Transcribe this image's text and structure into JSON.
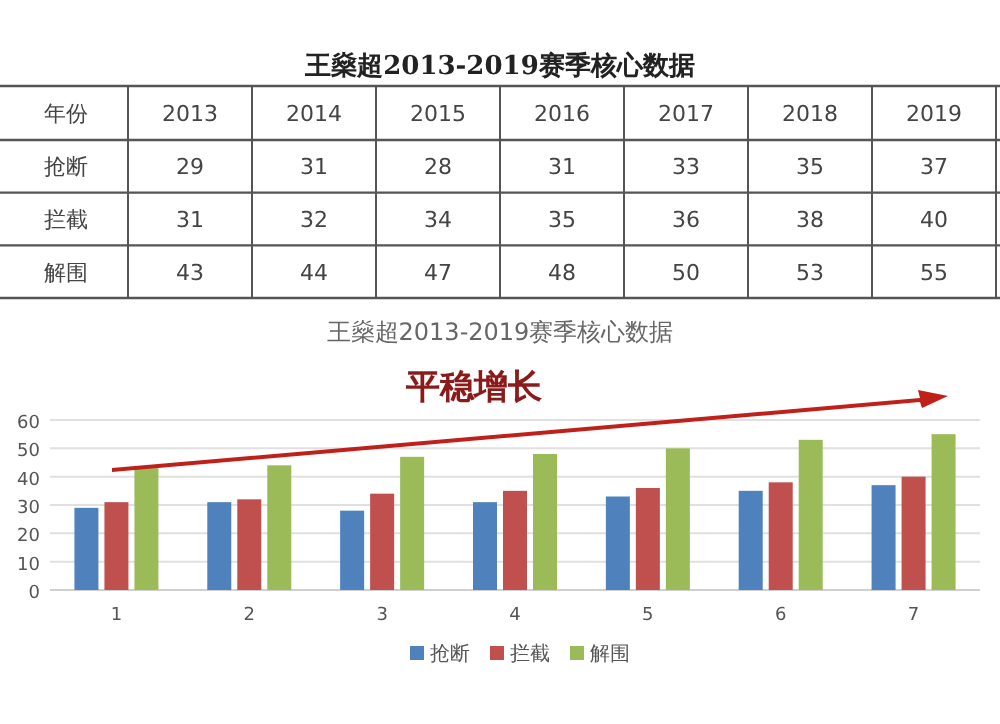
{
  "chart_data": [
    {
      "type": "heatmap",
      "title": "王燊超2013-2019赛季核心数据",
      "xlabel": "年份",
      "categories": [
        "2013",
        "2014",
        "2015",
        "2016",
        "2017",
        "2018",
        "2019"
      ],
      "y_categories": [
        "抢断",
        "拦截",
        "解围"
      ],
      "cells": [
        [
          29,
          31,
          28,
          31,
          33,
          35,
          37
        ],
        [
          31,
          32,
          34,
          35,
          36,
          38,
          40
        ],
        [
          43,
          44,
          47,
          48,
          50,
          53,
          55
        ]
      ],
      "data_labels": true
    },
    {
      "type": "bar",
      "title": "王燊超2013-2019赛季核心数据",
      "subtitle": "平稳增长",
      "categories": [
        "1",
        "2",
        "3",
        "4",
        "5",
        "6",
        "7"
      ],
      "series": [
        {
          "name": "抢断",
          "color": "#4f81bd",
          "values": [
            29,
            31,
            28,
            31,
            33,
            35,
            37
          ]
        },
        {
          "name": "拦截",
          "color": "#c0504d",
          "values": [
            31,
            32,
            34,
            35,
            36,
            38,
            40
          ]
        },
        {
          "name": "解围",
          "color": "#9bbb59",
          "values": [
            43,
            44,
            47,
            48,
            50,
            53,
            55
          ]
        }
      ],
      "ylim": [
        0,
        60
      ],
      "yticks": [
        0,
        10,
        20,
        30,
        40,
        50,
        60
      ],
      "grid": "y",
      "legend": "bottom"
    }
  ]
}
